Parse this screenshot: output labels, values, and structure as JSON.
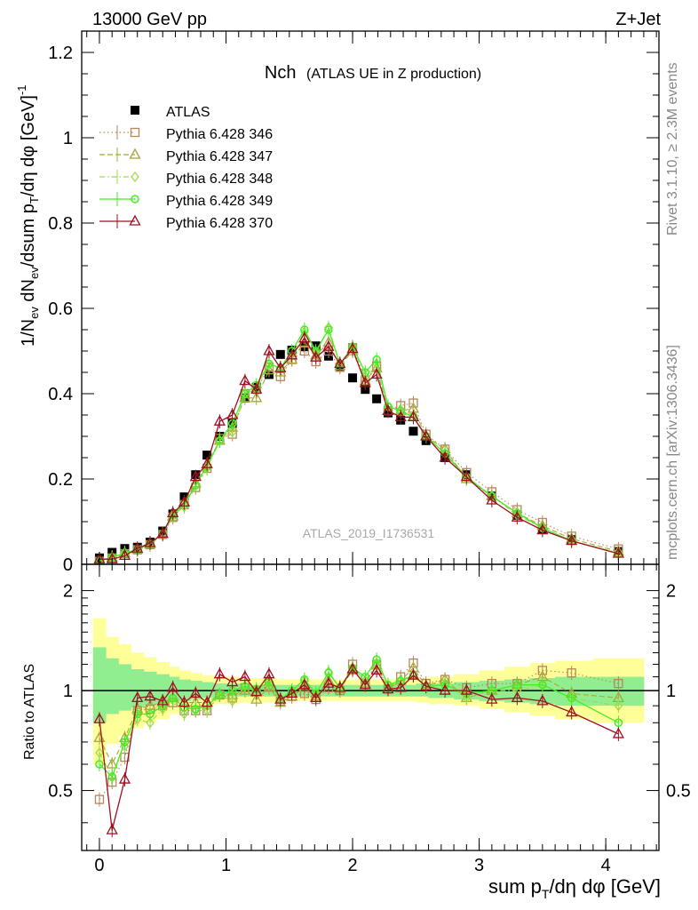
{
  "header": {
    "left": "13000 GeV pp",
    "right": "Z+Jet"
  },
  "side": {
    "rivet": "Rivet 3.1.10, ≥ 2.3M events",
    "mcplots": "mcplots.cern.ch [arXiv:1306.3436]"
  },
  "chart_data": [
    {
      "type": "scatter",
      "title": "Nch",
      "subtitle": "(ATLAS UE in Z production)",
      "watermark": "ATLAS_2019_I1736531",
      "ylabel": "1/N_ev dN_ev/dsum p_T/dη dφ [GeV]^-1",
      "xlim": [
        -0.14,
        4.42
      ],
      "ylim": [
        0,
        1.25
      ],
      "yticks": [
        "0",
        "0.2",
        "0.4",
        "0.6",
        "0.8",
        "1",
        "1.2"
      ],
      "legend_position": "top-left",
      "x": [
        0.0,
        0.1,
        0.2,
        0.3,
        0.4,
        0.5,
        0.58,
        0.67,
        0.76,
        0.85,
        0.95,
        1.05,
        1.15,
        1.24,
        1.34,
        1.43,
        1.52,
        1.62,
        1.71,
        1.81,
        1.9,
        2.0,
        2.1,
        2.19,
        2.28,
        2.38,
        2.48,
        2.58,
        2.73,
        2.9,
        3.1,
        3.3,
        3.5,
        3.73,
        4.1
      ],
      "series": [
        {
          "name": "ATLAS",
          "color": "#000000",
          "marker": "square-filled",
          "line": "none",
          "values": [
            0.015,
            0.028,
            0.037,
            0.04,
            0.052,
            0.078,
            0.118,
            0.158,
            0.21,
            0.256,
            0.3,
            0.33,
            0.39,
            0.415,
            0.445,
            0.492,
            0.502,
            0.51,
            0.512,
            0.488,
            0.462,
            0.437,
            0.41,
            0.388,
            0.355,
            0.338,
            0.312,
            0.29,
            0.25,
            0.21,
            0.16,
            0.115,
            0.082,
            0.058,
            0.03
          ]
        },
        {
          "name": "Pythia 6.428 346",
          "color": "#b8865a",
          "marker": "square-open",
          "line": "dotted",
          "values": [
            0.007,
            0.015,
            0.025,
            0.034,
            0.046,
            0.07,
            0.11,
            0.14,
            0.18,
            0.225,
            0.295,
            0.305,
            0.4,
            0.41,
            0.462,
            0.44,
            0.48,
            0.5,
            0.475,
            0.5,
            0.462,
            0.508,
            0.432,
            0.465,
            0.36,
            0.372,
            0.378,
            0.305,
            0.27,
            0.215,
            0.17,
            0.128,
            0.098,
            0.066,
            0.036
          ]
        },
        {
          "name": "Pythia 6.428 347",
          "color": "#a8a83c",
          "marker": "triangle-open",
          "line": "dashed",
          "values": [
            0.008,
            0.016,
            0.026,
            0.035,
            0.047,
            0.071,
            0.112,
            0.145,
            0.19,
            0.235,
            0.29,
            0.32,
            0.39,
            0.39,
            0.455,
            0.45,
            0.48,
            0.52,
            0.49,
            0.52,
            0.465,
            0.5,
            0.43,
            0.46,
            0.36,
            0.36,
            0.365,
            0.3,
            0.27,
            0.2,
            0.16,
            0.12,
            0.09,
            0.06,
            0.03
          ]
        },
        {
          "name": "Pythia 6.428 348",
          "color": "#a4d84a",
          "marker": "diamond-open",
          "line": "dashdot",
          "values": [
            0.009,
            0.016,
            0.027,
            0.035,
            0.048,
            0.072,
            0.115,
            0.135,
            0.185,
            0.225,
            0.29,
            0.31,
            0.4,
            0.41,
            0.47,
            0.46,
            0.49,
            0.545,
            0.495,
            0.555,
            0.47,
            0.51,
            0.44,
            0.47,
            0.37,
            0.36,
            0.35,
            0.3,
            0.26,
            0.2,
            0.16,
            0.115,
            0.085,
            0.055,
            0.027
          ]
        },
        {
          "name": "Pythia 6.428 349",
          "color": "#44ee22",
          "marker": "circle-open",
          "line": "solid",
          "values": [
            0.008,
            0.016,
            0.026,
            0.035,
            0.048,
            0.072,
            0.116,
            0.14,
            0.185,
            0.23,
            0.29,
            0.33,
            0.4,
            0.42,
            0.47,
            0.46,
            0.5,
            0.55,
            0.5,
            0.55,
            0.47,
            0.51,
            0.45,
            0.48,
            0.37,
            0.36,
            0.345,
            0.3,
            0.26,
            0.205,
            0.16,
            0.12,
            0.085,
            0.055,
            0.025
          ]
        },
        {
          "name": "Pythia 6.428 370",
          "color": "#a01020",
          "marker": "triangle-open",
          "line": "solid",
          "values": [
            0.012,
            0.012,
            0.02,
            0.037,
            0.05,
            0.072,
            0.12,
            0.145,
            0.205,
            0.235,
            0.335,
            0.35,
            0.43,
            0.41,
            0.5,
            0.46,
            0.49,
            0.53,
            0.485,
            0.51,
            0.47,
            0.505,
            0.425,
            0.445,
            0.36,
            0.345,
            0.345,
            0.3,
            0.25,
            0.205,
            0.15,
            0.11,
            0.08,
            0.055,
            0.025
          ]
        }
      ]
    },
    {
      "type": "scatter",
      "ylabel": "Ratio to ATLAS",
      "xlabel": "sum p_T/dη dφ [GeV]",
      "xlim": [
        -0.14,
        4.42
      ],
      "ylim": [
        0.33,
        2.4
      ],
      "log_y": true,
      "yticks": [
        "0.5",
        "1",
        "2"
      ],
      "xticks": [
        "0",
        "1",
        "2",
        "3",
        "4"
      ],
      "reference_line": 1,
      "bands": {
        "inner_color": "#90ee90",
        "outer_color": "#ffff99",
        "x_edges": [
          -0.05,
          0.05,
          0.15,
          0.25,
          0.35,
          0.45,
          0.55,
          0.63,
          0.72,
          0.81,
          0.9,
          1.0,
          1.1,
          1.2,
          1.3,
          1.4,
          1.5,
          1.6,
          1.7,
          1.8,
          1.9,
          2.0,
          2.1,
          2.2,
          2.3,
          2.4,
          2.5,
          2.6,
          2.8,
          3.0,
          3.2,
          3.4,
          3.6,
          3.9,
          4.3
        ],
        "outer_hi": [
          1.65,
          1.45,
          1.38,
          1.3,
          1.26,
          1.22,
          1.18,
          1.15,
          1.13,
          1.11,
          1.1,
          1.1,
          1.09,
          1.09,
          1.09,
          1.08,
          1.08,
          1.08,
          1.08,
          1.08,
          1.08,
          1.08,
          1.08,
          1.08,
          1.08,
          1.08,
          1.09,
          1.1,
          1.12,
          1.15,
          1.18,
          1.21,
          1.23,
          1.25
        ],
        "outer_lo": [
          0.6,
          0.69,
          0.73,
          0.77,
          0.8,
          0.82,
          0.85,
          0.87,
          0.88,
          0.9,
          0.91,
          0.91,
          0.92,
          0.92,
          0.92,
          0.93,
          0.93,
          0.93,
          0.93,
          0.93,
          0.93,
          0.93,
          0.93,
          0.93,
          0.93,
          0.93,
          0.92,
          0.91,
          0.9,
          0.88,
          0.86,
          0.84,
          0.82,
          0.8
        ],
        "inner_hi": [
          1.35,
          1.25,
          1.2,
          1.16,
          1.14,
          1.12,
          1.1,
          1.08,
          1.07,
          1.06,
          1.05,
          1.05,
          1.05,
          1.04,
          1.04,
          1.04,
          1.04,
          1.04,
          1.04,
          1.04,
          1.04,
          1.04,
          1.04,
          1.04,
          1.04,
          1.04,
          1.05,
          1.05,
          1.06,
          1.07,
          1.08,
          1.09,
          1.1,
          1.1
        ],
        "inner_lo": [
          0.8,
          0.85,
          0.87,
          0.89,
          0.9,
          0.91,
          0.92,
          0.93,
          0.94,
          0.95,
          0.95,
          0.96,
          0.96,
          0.96,
          0.96,
          0.96,
          0.96,
          0.96,
          0.96,
          0.96,
          0.96,
          0.96,
          0.96,
          0.96,
          0.96,
          0.96,
          0.96,
          0.95,
          0.94,
          0.93,
          0.92,
          0.91,
          0.9,
          0.9
        ]
      },
      "x": [
        0.0,
        0.1,
        0.2,
        0.3,
        0.4,
        0.5,
        0.58,
        0.67,
        0.76,
        0.85,
        0.95,
        1.05,
        1.15,
        1.24,
        1.34,
        1.43,
        1.52,
        1.62,
        1.71,
        1.81,
        1.9,
        2.0,
        2.1,
        2.19,
        2.28,
        2.38,
        2.48,
        2.58,
        2.73,
        2.9,
        3.1,
        3.3,
        3.5,
        3.73,
        4.1
      ],
      "series": [
        {
          "name": "Pythia 6.428 346",
          "color": "#b8865a",
          "marker": "square-open",
          "line": "dotted",
          "values": [
            0.47,
            0.53,
            0.63,
            0.87,
            0.88,
            0.9,
            0.92,
            0.87,
            0.87,
            0.87,
            0.97,
            0.95,
            1.02,
            1.0,
            1.03,
            0.93,
            0.96,
            0.98,
            0.94,
            1.02,
            1.0,
            1.2,
            1.05,
            1.2,
            1.01,
            1.1,
            1.21,
            1.05,
            1.08,
            1.02,
            1.05,
            1.05,
            1.15,
            1.13,
            1.05
          ]
        },
        {
          "name": "Pythia 6.428 347",
          "color": "#a8a83c",
          "marker": "triangle-open",
          "line": "dashed",
          "values": [
            0.72,
            0.6,
            0.72,
            0.88,
            0.9,
            0.92,
            0.95,
            0.92,
            0.92,
            0.92,
            0.97,
            0.97,
            1.0,
            0.94,
            1.02,
            0.92,
            0.96,
            1.02,
            0.96,
            1.07,
            1.01,
            1.15,
            1.05,
            1.19,
            1.01,
            1.07,
            1.17,
            1.03,
            1.08,
            0.95,
            1.0,
            1.04,
            1.1,
            0.98,
            0.95
          ]
        },
        {
          "name": "Pythia 6.428 348",
          "color": "#a4d84a",
          "marker": "diamond-open",
          "line": "dashdot",
          "values": [
            0.65,
            0.55,
            0.68,
            0.82,
            0.8,
            0.88,
            0.95,
            0.85,
            0.87,
            0.87,
            0.97,
            0.93,
            1.03,
            0.99,
            1.05,
            0.94,
            0.98,
            1.07,
            0.97,
            1.14,
            1.02,
            1.17,
            1.07,
            1.21,
            1.04,
            1.07,
            1.12,
            1.03,
            1.04,
            0.95,
            1.0,
            1.0,
            1.04,
            0.95,
            0.9
          ]
        },
        {
          "name": "Pythia 6.428 349",
          "color": "#44ee22",
          "marker": "circle-open",
          "line": "solid",
          "values": [
            0.6,
            0.55,
            0.7,
            0.85,
            0.85,
            0.9,
            0.95,
            0.89,
            0.88,
            0.9,
            0.97,
            1.0,
            1.03,
            1.01,
            1.06,
            0.94,
            1.0,
            1.08,
            0.98,
            1.13,
            1.02,
            1.17,
            1.1,
            1.24,
            1.04,
            1.07,
            1.11,
            1.03,
            1.04,
            0.98,
            1.0,
            1.04,
            1.04,
            0.95,
            0.8
          ]
        },
        {
          "name": "Pythia 6.428 370",
          "color": "#a01020",
          "marker": "triangle-open",
          "line": "solid",
          "values": [
            0.82,
            0.38,
            0.54,
            0.95,
            0.96,
            0.93,
            1.02,
            0.92,
            0.98,
            0.92,
            1.12,
            1.06,
            1.1,
            0.99,
            1.12,
            0.94,
            0.98,
            1.04,
            0.95,
            1.05,
            1.02,
            1.16,
            1.04,
            1.15,
            1.01,
            1.02,
            1.11,
            1.03,
            1.0,
            1.0,
            0.94,
            0.95,
            0.93,
            0.86,
            0.74
          ]
        }
      ]
    }
  ]
}
